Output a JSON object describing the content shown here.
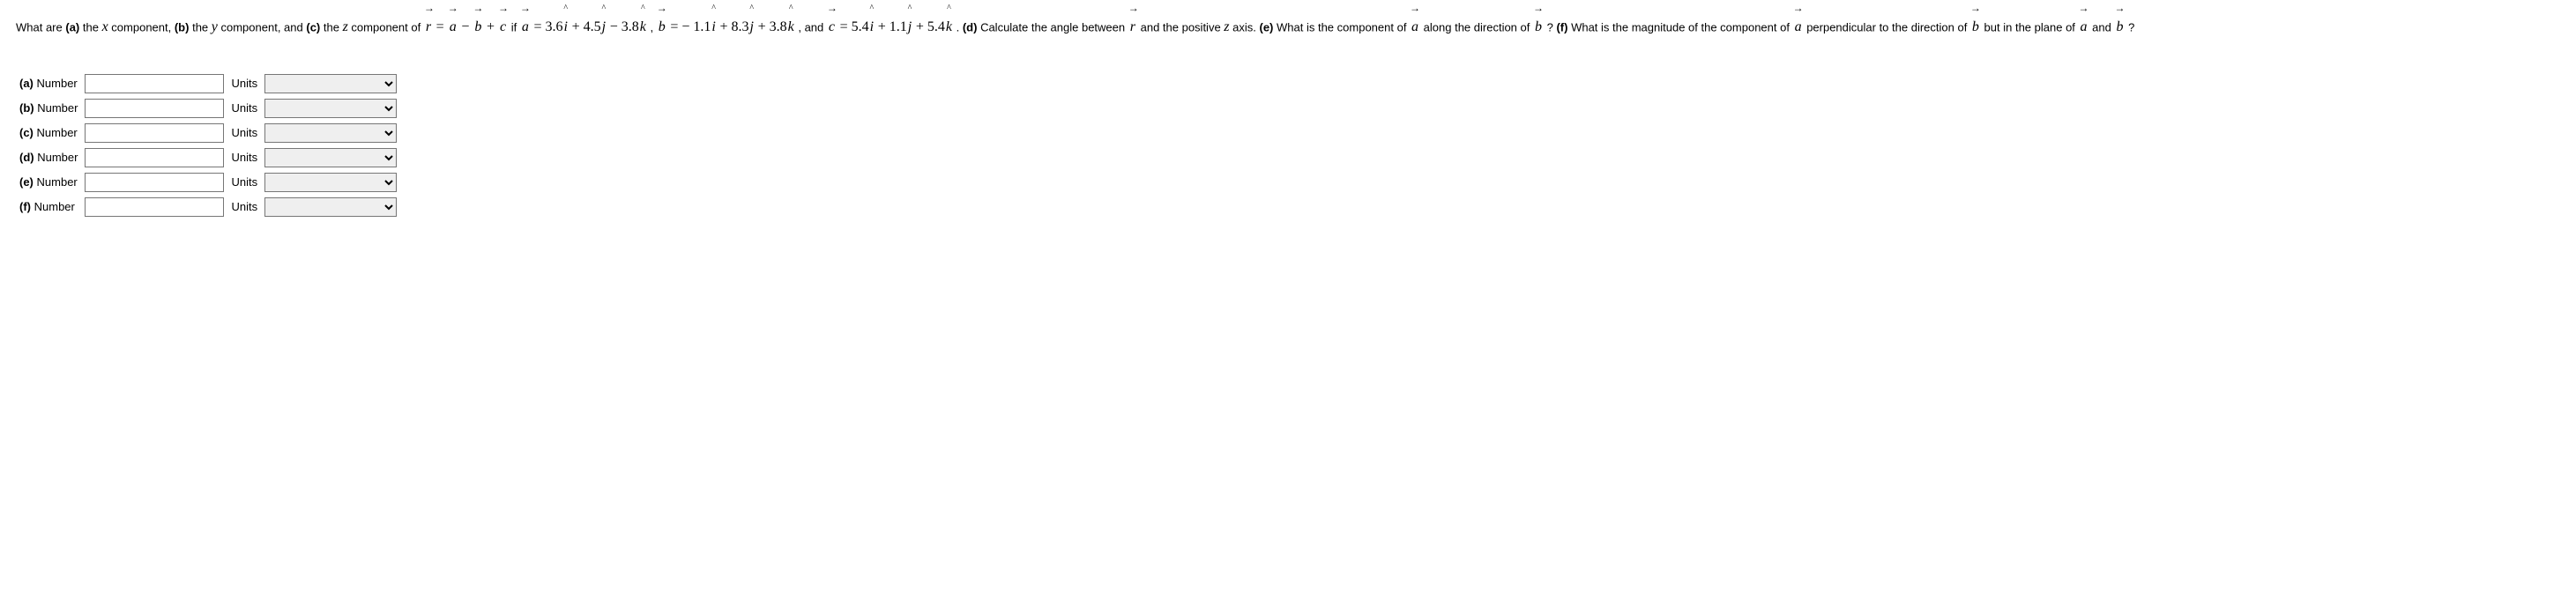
{
  "prompt": {
    "lead1": "What are ",
    "b_a": "(a)",
    "txt_a": " the ",
    "x_lbl": "x",
    "txt_a2": " component, ",
    "b_b": "(b)",
    "txt_b": " the ",
    "y_lbl": "y",
    "txt_b2": " component, and ",
    "b_c": "(c)",
    "txt_c": " the ",
    "z_lbl": "z",
    "txt_c2": " component of ",
    "eq_r": "r",
    "eq_eq": " = ",
    "eq_a": "a",
    "eq_minus": " − ",
    "eq_bv": "b",
    "eq_plus": " + ",
    "eq_cv": "c",
    "if_txt": " if ",
    "a_vec": "a",
    "a_expr_pre": " = 3.6",
    "i": "i",
    "a_expr_mid1": " + 4.5",
    "j": "j",
    "a_expr_mid2": " − 3.8",
    "k": "k",
    "comma": " , ",
    "b_vec": "b",
    "b_expr_pre": " = − 1.1",
    "b_expr_mid1": " + 8.3",
    "b_expr_mid2": " + 3.8",
    "and_txt": " , and ",
    "c_vec": "c",
    "c_expr_pre": " = 5.4",
    "c_expr_mid1": " + 1.1",
    "c_expr_mid2": " + 5.4",
    "period": " . ",
    "b_d": "(d)",
    "txt_d": " Calculate the angle between ",
    "r2": "r",
    "txt_d2": " and the positive ",
    "z2": "z",
    "txt_d3": " axis. ",
    "b_e": "(e)",
    "txt_e": " What is the component of ",
    "a2": "a",
    "txt_e2": " along the direction of ",
    "b2": "b",
    "txt_e3": " ? ",
    "b_f": "(f)",
    "txt_f": " What is the magnitude of the component of ",
    "a3": "a",
    "txt_f2": " perpendicular to the direction of ",
    "b3": "b",
    "txt_f3": " but in the plane of ",
    "a4": "a",
    "and2": " and ",
    "b4": "b",
    "txt_f4": " ?"
  },
  "rows": [
    {
      "part": "(a)",
      "numLabel": "Number",
      "unitsLabel": "Units"
    },
    {
      "part": "(b)",
      "numLabel": "Number",
      "unitsLabel": "Units"
    },
    {
      "part": "(c)",
      "numLabel": "Number",
      "unitsLabel": "Units"
    },
    {
      "part": "(d)",
      "numLabel": "Number",
      "unitsLabel": "Units"
    },
    {
      "part": "(e)",
      "numLabel": "Number",
      "unitsLabel": "Units"
    },
    {
      "part": "(f)",
      "numLabel": "Number",
      "unitsLabel": "Units"
    }
  ]
}
